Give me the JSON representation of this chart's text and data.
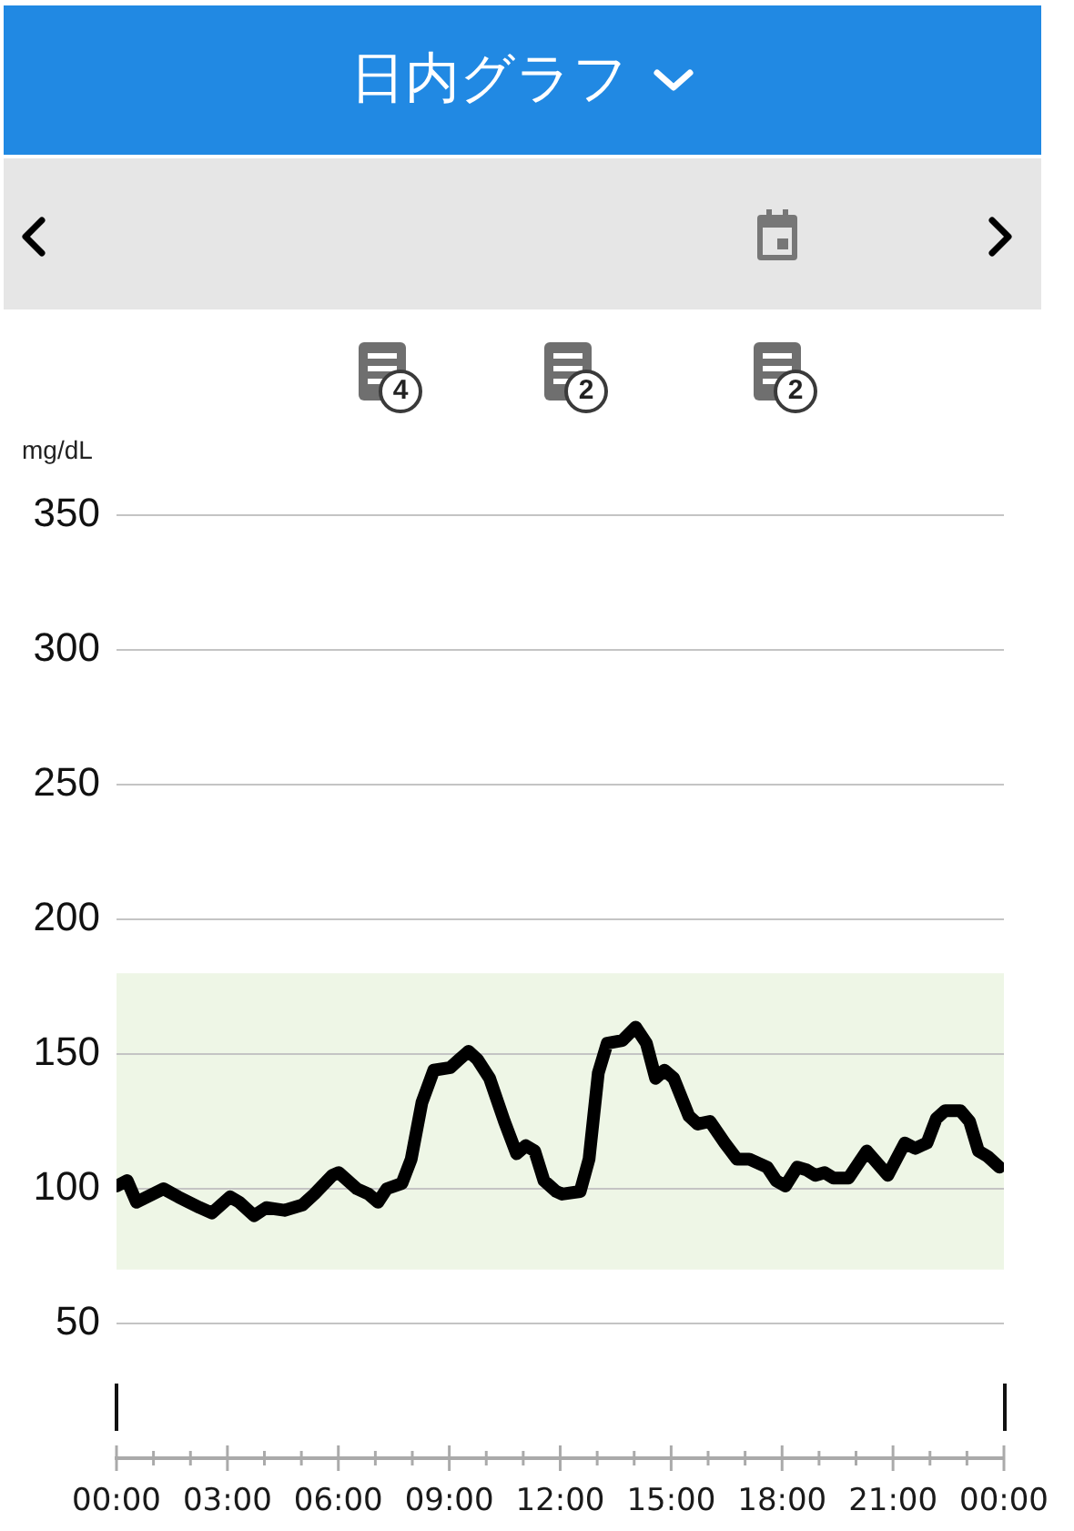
{
  "chart_data": {
    "type": "line",
    "title": "日内グラフ",
    "ylabel": "mg/dL",
    "x": [
      0,
      0.29,
      0.54,
      1.27,
      1.67,
      2.25,
      2.58,
      3.07,
      3.32,
      3.72,
      4.05,
      4.54,
      5.03,
      5.35,
      5.84,
      6.01,
      6.5,
      6.82,
      7.07,
      7.31,
      7.72,
      7.97,
      8.26,
      8.58,
      9.03,
      9.27,
      9.52,
      9.76,
      10.09,
      10.49,
      10.82,
      11.07,
      11.31,
      11.56,
      11.89,
      12.05,
      12.54,
      12.78,
      13.03,
      13.27,
      13.68,
      14.04,
      14.33,
      14.58,
      14.82,
      15.07,
      15.48,
      15.72,
      16.05,
      16.45,
      16.78,
      17.11,
      17.6,
      17.84,
      18.09,
      18.41,
      18.66,
      18.9,
      19.15,
      19.39,
      19.8,
      20.29,
      20.86,
      21.32,
      21.6,
      21.92,
      22.17,
      22.41,
      22.82,
      23.07,
      23.31,
      23.56,
      23.88
    ],
    "series": [
      {
        "color": "#000000",
        "values": [
          101,
          103,
          95,
          100,
          97,
          93,
          91,
          97,
          95,
          90,
          93,
          92,
          94,
          98,
          105,
          106,
          100,
          98,
          95,
          100,
          102,
          111,
          132,
          144,
          145,
          148,
          151,
          148,
          141,
          125,
          113,
          116,
          114,
          103,
          99,
          98,
          99,
          111,
          143,
          154,
          155,
          160,
          154,
          141,
          144,
          141,
          127,
          124,
          125,
          117,
          111,
          111,
          108,
          103,
          101,
          108,
          107,
          105,
          106,
          104,
          104,
          114,
          105,
          117,
          115,
          117,
          126,
          129,
          129,
          125,
          114,
          112,
          108
        ]
      }
    ],
    "xlim": [
      0,
      24
    ],
    "xticks": [
      {
        "value": 0,
        "label": "00:00"
      },
      {
        "value": 1,
        "label": null
      },
      {
        "value": 2,
        "label": null
      },
      {
        "value": 3,
        "label": "03:00"
      },
      {
        "value": 4,
        "label": null
      },
      {
        "value": 5,
        "label": null
      },
      {
        "value": 6,
        "label": "06:00"
      },
      {
        "value": 7,
        "label": null
      },
      {
        "value": 8,
        "label": null
      },
      {
        "value": 9,
        "label": "09:00"
      },
      {
        "value": 10,
        "label": null
      },
      {
        "value": 11,
        "label": null
      },
      {
        "value": 12,
        "label": "12:00"
      },
      {
        "value": 13,
        "label": null
      },
      {
        "value": 14,
        "label": null
      },
      {
        "value": 15,
        "label": "15:00"
      },
      {
        "value": 16,
        "label": null
      },
      {
        "value": 17,
        "label": null
      },
      {
        "value": 18,
        "label": "18:00"
      },
      {
        "value": 19,
        "label": null
      },
      {
        "value": 20,
        "label": null
      },
      {
        "value": 21,
        "label": "21:00"
      },
      {
        "value": 22,
        "label": null
      },
      {
        "value": 23,
        "label": null
      },
      {
        "value": 24,
        "label": "00:00"
      }
    ],
    "ylim": [
      0,
      350
    ],
    "yticks": [
      50,
      100,
      150,
      200,
      250,
      300,
      350
    ],
    "bands": [
      {
        "axis": "y",
        "from": 70,
        "to": 180,
        "color": "#eef6e6"
      }
    ],
    "annotations": [
      "4",
      "2",
      "2"
    ],
    "grid": "y",
    "marker": "none",
    "line_style": "solid"
  }
}
